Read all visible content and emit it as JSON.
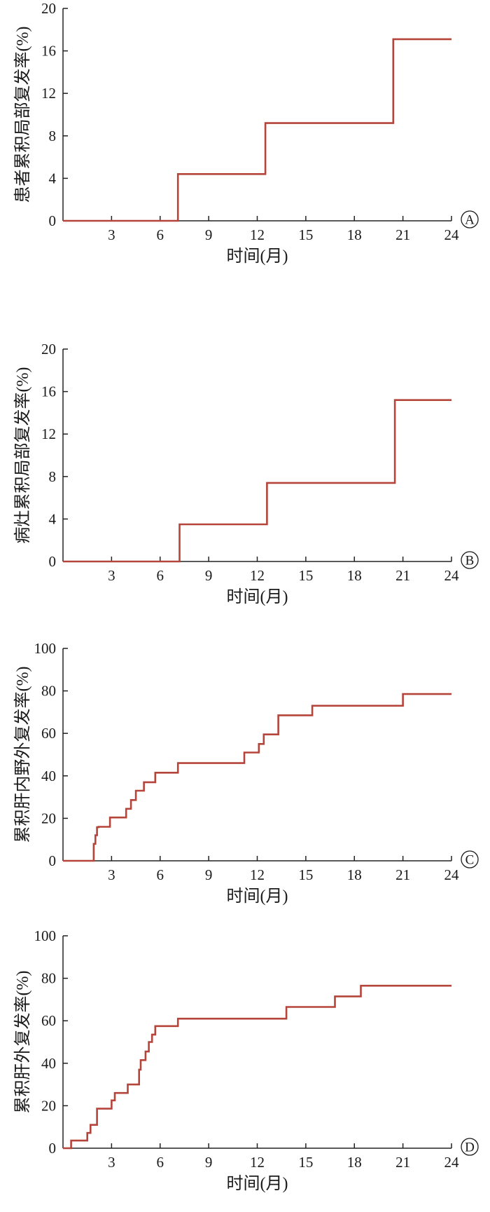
{
  "colors": {
    "curve": "#b5443a",
    "axis": "#222222",
    "text": "#1a1a1a"
  },
  "chart_data": [
    {
      "panel": "A",
      "type": "line",
      "step": true,
      "xlabel": "时间(月)",
      "ylabel": "患者累积局部复发率(%)",
      "xlim": [
        0,
        24
      ],
      "ylim": [
        0,
        20
      ],
      "xticks": [
        3,
        6,
        9,
        12,
        15,
        18,
        21,
        24
      ],
      "yticks": [
        0,
        4,
        8,
        12,
        16,
        20
      ],
      "series": [
        {
          "x": [
            0,
            7.1,
            7.1,
            12.5,
            12.5,
            20.4,
            20.4,
            24
          ],
          "y": [
            0,
            0,
            4.4,
            4.4,
            9.2,
            9.2,
            17.1,
            17.1
          ]
        }
      ]
    },
    {
      "panel": "B",
      "type": "line",
      "step": true,
      "xlabel": "时间(月)",
      "ylabel": "病灶累积局部复发率(%)",
      "xlim": [
        0,
        24
      ],
      "ylim": [
        0,
        20
      ],
      "xticks": [
        3,
        6,
        9,
        12,
        15,
        18,
        21,
        24
      ],
      "yticks": [
        0,
        4,
        8,
        12,
        16,
        20
      ],
      "series": [
        {
          "x": [
            0,
            7.2,
            7.2,
            12.6,
            12.6,
            20.5,
            20.5,
            24
          ],
          "y": [
            0,
            0,
            3.5,
            3.5,
            7.4,
            7.4,
            15.2,
            15.2
          ]
        }
      ]
    },
    {
      "panel": "C",
      "type": "line",
      "step": true,
      "xlabel": "时间(月)",
      "ylabel": "累积肝内野外复发率(%)",
      "xlim": [
        0,
        24
      ],
      "ylim": [
        0,
        100
      ],
      "xticks": [
        3,
        6,
        9,
        12,
        15,
        18,
        21,
        24
      ],
      "yticks": [
        0,
        20,
        40,
        60,
        80,
        100
      ],
      "series": [
        {
          "x": [
            0,
            1.9,
            1.9,
            2.0,
            2.0,
            2.1,
            2.1,
            2.2,
            2.2,
            2.9,
            2.9,
            3.9,
            3.9,
            4.2,
            4.2,
            4.5,
            4.5,
            5.0,
            5.0,
            5.7,
            5.7,
            7.1,
            7.1,
            11.2,
            11.2,
            12.1,
            12.1,
            12.4,
            12.4,
            13.3,
            13.3,
            15.4,
            15.4,
            21.0,
            21.0,
            24
          ],
          "y": [
            0,
            0,
            8,
            8,
            12,
            12,
            15.8,
            15.8,
            16,
            16,
            20.4,
            20.4,
            24.5,
            24.5,
            28.6,
            28.6,
            33,
            33,
            37,
            37,
            41.5,
            41.5,
            46,
            46,
            51,
            51,
            55,
            55,
            59.5,
            59.5,
            68.5,
            68.5,
            73,
            73,
            78.5,
            78.5
          ]
        }
      ]
    },
    {
      "panel": "D",
      "type": "line",
      "step": true,
      "xlabel": "时间(月)",
      "ylabel": "累积肝外复发率(%)",
      "xlim": [
        0,
        24
      ],
      "ylim": [
        0,
        100
      ],
      "xticks": [
        3,
        6,
        9,
        12,
        15,
        18,
        21,
        24
      ],
      "yticks": [
        0,
        20,
        40,
        60,
        80,
        100
      ],
      "series": [
        {
          "x": [
            0,
            0.5,
            0.5,
            1.5,
            1.5,
            1.7,
            1.7,
            2.1,
            2.1,
            3.0,
            3.0,
            3.2,
            3.2,
            4.0,
            4.0,
            4.7,
            4.7,
            4.8,
            4.8,
            5.1,
            5.1,
            5.3,
            5.3,
            5.5,
            5.5,
            5.7,
            5.7,
            7.1,
            7.1,
            13.8,
            13.8,
            16.8,
            16.8,
            18.4,
            18.4,
            24
          ],
          "y": [
            0,
            0,
            3.6,
            3.6,
            7.2,
            7.2,
            11,
            11,
            18.6,
            18.6,
            22.5,
            22.5,
            26,
            26,
            30,
            30,
            37,
            37,
            41.5,
            41.5,
            45.5,
            45.5,
            50,
            50,
            53.5,
            53.5,
            57.5,
            57.5,
            61,
            61,
            66.5,
            66.5,
            71.5,
            71.5,
            76.5,
            76.5
          ]
        }
      ]
    }
  ]
}
